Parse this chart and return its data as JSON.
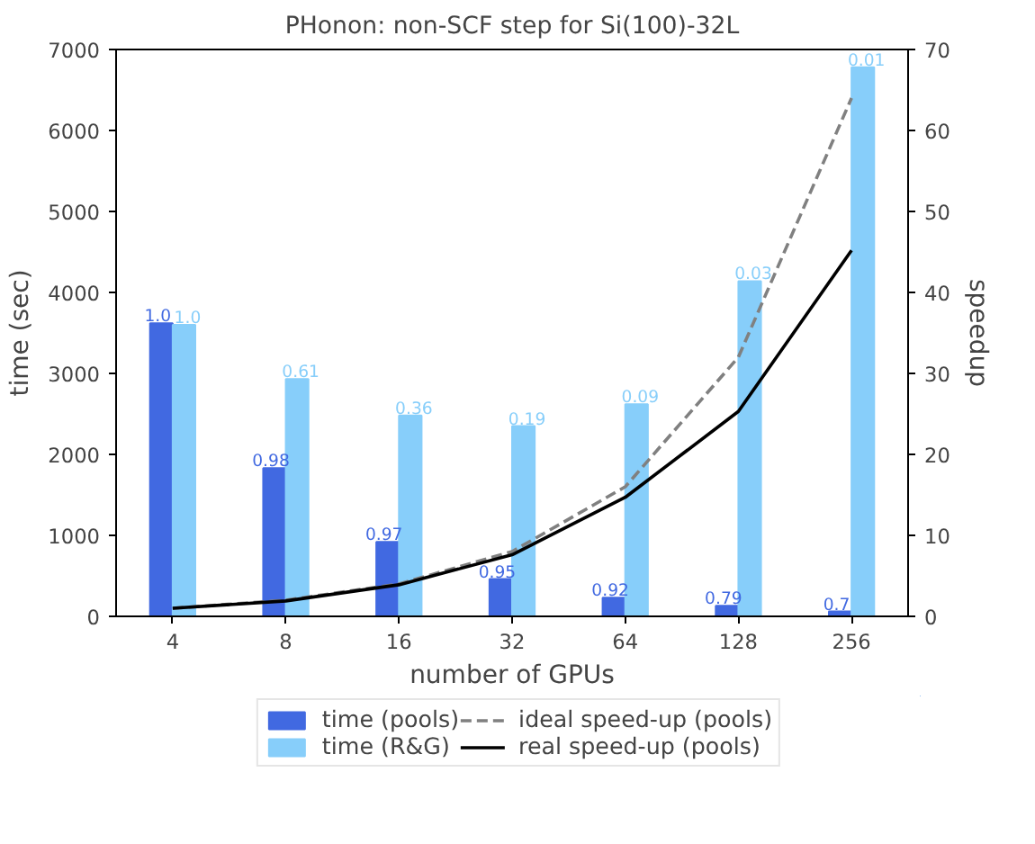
{
  "chart_data": {
    "type": "bar",
    "title": "PHonon: non-SCF step for Si(100)-32L",
    "xlabel": "number of GPUs",
    "ylabel": "time (sec)",
    "y2label": "speedup",
    "categories": [
      "4",
      "8",
      "16",
      "32",
      "64",
      "128",
      "256"
    ],
    "series": [
      {
        "name": "time (pools)",
        "color": "#4169e1",
        "values": [
          3620,
          1830,
          920,
          460,
          230,
          130,
          60
        ]
      },
      {
        "name": "time (R&G)",
        "color": "#87cefa",
        "values": [
          3600,
          2930,
          2480,
          2350,
          2620,
          4140,
          6780
        ]
      },
      {
        "name": "ideal speed-up (pools)",
        "type": "line",
        "axis": "y2",
        "color": "#808080",
        "line_style": "dashed",
        "values": [
          1,
          2,
          4,
          8,
          16,
          32,
          64
        ]
      },
      {
        "name": "real speed-up (pools)",
        "type": "line",
        "axis": "y2",
        "color": "#000000",
        "line_style": "solid",
        "values": [
          1,
          1.9,
          3.9,
          7.6,
          14.7,
          25.3,
          45.2
        ]
      }
    ],
    "annotations": [
      {
        "text": "1.0",
        "x": "4",
        "y": 3620
      },
      {
        "text": "0.98",
        "x": "8",
        "y": 1830
      },
      {
        "text": "0.97",
        "x": "16",
        "y": 920
      },
      {
        "text": "0.95",
        "x": "32",
        "y": 460
      },
      {
        "text": "0.92",
        "x": "64",
        "y": 230
      },
      {
        "text": "0.79",
        "x": "128",
        "y": 130
      },
      {
        "text": "0.7",
        "x": "256",
        "y": 60
      },
      {
        "text": "1.0",
        "x": "4",
        "y": 3600
      },
      {
        "text": "0.61",
        "x": "8",
        "y": 2930
      },
      {
        "text": "0.36",
        "x": "16",
        "y": 2480
      },
      {
        "text": "0.19",
        "x": "32",
        "y": 2350
      },
      {
        "text": "0.09",
        "x": "64",
        "y": 2620
      },
      {
        "text": "0.03",
        "x": "128",
        "y": 4140
      },
      {
        "text": "0.01",
        "x": "256",
        "y": 6780
      }
    ],
    "ylim": [
      0,
      7000
    ],
    "yticks": [
      0,
      1000,
      2000,
      3000,
      4000,
      5000,
      6000,
      7000
    ],
    "y2lim": [
      0,
      70
    ],
    "y2ticks": [
      0,
      10,
      20,
      30,
      40,
      50,
      60,
      70
    ],
    "legend": "bottom"
  }
}
